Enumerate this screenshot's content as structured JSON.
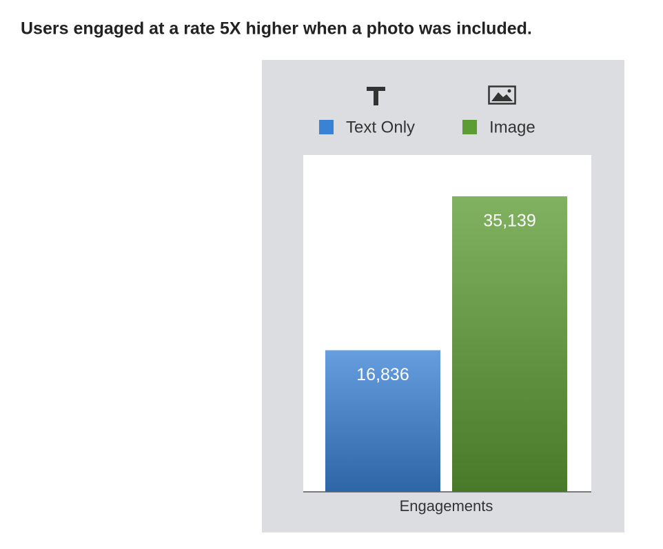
{
  "chart_data": {
    "type": "bar",
    "title": "Users engaged at a rate 5X higher when a photo was included.",
    "categories": [
      "Engagements"
    ],
    "series": [
      {
        "name": "Text Only",
        "color": "#3a82d6",
        "values": [
          16836
        ],
        "value_labels": [
          "16,836"
        ]
      },
      {
        "name": "Image",
        "color": "#5c9c34",
        "values": [
          35139
        ],
        "value_labels": [
          "35,139"
        ]
      }
    ]
  }
}
